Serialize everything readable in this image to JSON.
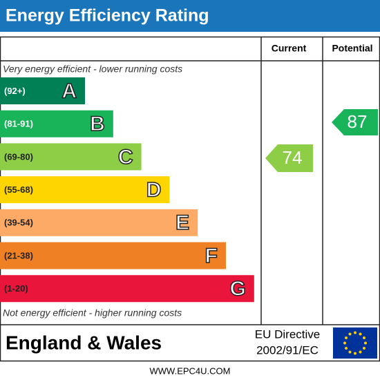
{
  "header": {
    "title": "Energy Efficiency Rating"
  },
  "columns": [
    "Current",
    "Potential"
  ],
  "top_note": "Very energy efficient - lower running costs",
  "bands": [
    {
      "range": "(92+)",
      "letter": "A"
    },
    {
      "range": "(81-91)",
      "letter": "B"
    },
    {
      "range": "(69-80)",
      "letter": "C"
    },
    {
      "range": "(55-68)",
      "letter": "D"
    },
    {
      "range": "(39-54)",
      "letter": "E"
    },
    {
      "range": "(21-38)",
      "letter": "F"
    },
    {
      "range": "(1-20)",
      "letter": "G"
    }
  ],
  "bottom_note": "Not energy efficient - higher running costs",
  "ratings": {
    "current": "74",
    "potential": "87"
  },
  "footer": {
    "region": "England & Wales",
    "directive": [
      "EU Directive",
      "2002/91/EC"
    ]
  },
  "website": "WWW.EPC4U.COM"
}
